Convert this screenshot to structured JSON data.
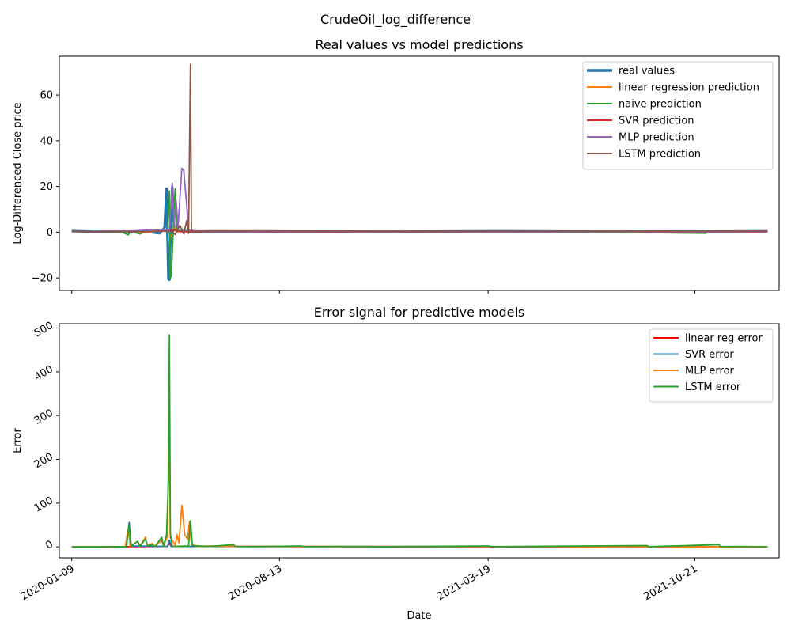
{
  "suptitle": "CrudeOil_log_difference",
  "chart_data": [
    {
      "type": "line",
      "title": "Real values vs model predictions",
      "xlabel": "",
      "ylabel": "Log-Differenced Close price",
      "x_range": [
        "2019-12-27",
        "2022-01-17"
      ],
      "ylim": [
        -25.5,
        77
      ],
      "yticks": [
        -20,
        0,
        20,
        40,
        60
      ],
      "xticks": [
        "2020-01-09",
        "2020-08-13",
        "2021-03-19",
        "2021-10-21"
      ],
      "grid": false,
      "legend_position": "upper right",
      "series": [
        {
          "name": "real values",
          "color": "#1f77b4",
          "line_width": "thick",
          "points": [
            [
              "2020-01-09",
              0.5
            ],
            [
              "2020-02-01",
              0.2
            ],
            [
              "2020-03-01",
              0.3
            ],
            [
              "2020-04-01",
              0.0
            ],
            [
              "2020-04-10",
              -0.5
            ],
            [
              "2020-04-15",
              2
            ],
            [
              "2020-04-17",
              19
            ],
            [
              "2020-04-19",
              -20.5
            ],
            [
              "2020-04-20",
              -20.8
            ],
            [
              "2020-04-21",
              -5
            ],
            [
              "2020-04-23",
              19.8
            ],
            [
              "2020-04-25",
              1
            ],
            [
              "2020-05-01",
              0.5
            ],
            [
              "2020-06-01",
              0.2
            ],
            [
              "2020-08-01",
              0.3
            ],
            [
              "2020-12-01",
              0.2
            ],
            [
              "2021-04-01",
              0.4
            ],
            [
              "2021-08-01",
              0.2
            ],
            [
              "2021-12-01",
              0.3
            ],
            [
              "2022-01-05",
              0.4
            ]
          ]
        },
        {
          "name": "linear regression prediction",
          "color": "#ff7f0e",
          "line_width": "normal",
          "points": [
            [
              "2020-01-09",
              0.3
            ],
            [
              "2020-03-01",
              0.2
            ],
            [
              "2020-04-01",
              0.1
            ],
            [
              "2020-04-18",
              1
            ],
            [
              "2020-04-22",
              -2
            ],
            [
              "2020-04-25",
              2
            ],
            [
              "2020-05-01",
              0.3
            ],
            [
              "2021-01-01",
              0.2
            ],
            [
              "2022-01-05",
              0.3
            ]
          ]
        },
        {
          "name": "naive prediction",
          "color": "#2ca02c",
          "line_width": "normal",
          "points": [
            [
              "2020-01-09",
              0.3
            ],
            [
              "2020-02-01",
              0.2
            ],
            [
              "2020-03-01",
              0.1
            ],
            [
              "2020-03-08",
              -1.2
            ],
            [
              "2020-03-10",
              0.5
            ],
            [
              "2020-03-20",
              -0.8
            ],
            [
              "2020-04-01",
              1.2
            ],
            [
              "2020-04-18",
              0.8
            ],
            [
              "2020-04-20",
              18
            ],
            [
              "2020-04-21",
              -20
            ],
            [
              "2020-04-22",
              -19
            ],
            [
              "2020-04-24",
              0.5
            ],
            [
              "2020-04-26",
              19
            ],
            [
              "2020-04-28",
              0.3
            ],
            [
              "2020-06-01",
              0.2
            ],
            [
              "2020-10-01",
              0.3
            ],
            [
              "2021-06-01",
              0.2
            ],
            [
              "2021-11-01",
              -0.5
            ],
            [
              "2021-11-05",
              0.3
            ],
            [
              "2022-01-05",
              0.2
            ]
          ]
        },
        {
          "name": "SVR prediction",
          "color": "#d62728",
          "line_width": "normal",
          "points": [
            [
              "2020-01-09",
              0.2
            ],
            [
              "2020-04-01",
              0.3
            ],
            [
              "2020-04-22",
              1
            ],
            [
              "2020-05-01",
              0.2
            ],
            [
              "2020-10-01",
              0.1
            ],
            [
              "2021-06-01",
              0.2
            ],
            [
              "2022-01-05",
              0.1
            ]
          ]
        },
        {
          "name": "MLP prediction",
          "color": "#9467bd",
          "line_width": "normal",
          "points": [
            [
              "2020-01-09",
              0.2
            ],
            [
              "2020-03-15",
              0.6
            ],
            [
              "2020-04-01",
              1
            ],
            [
              "2020-04-20",
              1
            ],
            [
              "2020-04-23",
              21.5
            ],
            [
              "2020-04-25",
              3
            ],
            [
              "2020-04-27",
              14
            ],
            [
              "2020-04-29",
              2
            ],
            [
              "2020-05-01",
              15
            ],
            [
              "2020-05-03",
              28
            ],
            [
              "2020-05-05",
              27
            ],
            [
              "2020-05-08",
              12
            ],
            [
              "2020-05-10",
              1
            ],
            [
              "2020-05-15",
              0.5
            ],
            [
              "2020-06-01",
              0.3
            ],
            [
              "2021-06-01",
              0.2
            ],
            [
              "2022-01-05",
              0.2
            ]
          ]
        },
        {
          "name": "LSTM prediction",
          "color": "#8c564b",
          "line_width": "normal",
          "points": [
            [
              "2020-01-09",
              0.3
            ],
            [
              "2020-04-01",
              0.3
            ],
            [
              "2020-04-22",
              0.5
            ],
            [
              "2020-04-26",
              -1
            ],
            [
              "2020-05-01",
              3
            ],
            [
              "2020-05-05",
              -0.8
            ],
            [
              "2020-05-08",
              5
            ],
            [
              "2020-05-10",
              -0.5
            ],
            [
              "2020-05-12",
              73.5
            ],
            [
              "2020-05-13",
              1
            ],
            [
              "2020-05-16",
              0.4
            ],
            [
              "2020-06-01",
              0.6
            ],
            [
              "2021-01-01",
              0.4
            ],
            [
              "2022-01-05",
              0.5
            ]
          ]
        }
      ]
    },
    {
      "type": "line",
      "title": "Error signal for predictive models",
      "xlabel": "Date",
      "ylabel": "Error",
      "x_range": [
        "2019-12-27",
        "2022-01-17"
      ],
      "ylim": [
        -25,
        510
      ],
      "yticks": [
        0,
        100,
        200,
        300,
        400,
        500
      ],
      "xticks": [
        "2020-01-09",
        "2020-08-13",
        "2021-03-19",
        "2021-10-21"
      ],
      "grid": false,
      "legend_position": "upper right",
      "series": [
        {
          "name": "linear reg error",
          "color": "#ff0000",
          "points": [
            [
              "2020-01-09",
              0
            ],
            [
              "2020-04-18",
              1
            ],
            [
              "2020-04-20",
              8
            ],
            [
              "2020-04-22",
              1
            ],
            [
              "2022-01-05",
              0
            ]
          ]
        },
        {
          "name": "SVR error",
          "color": "#1f77b4",
          "points": [
            [
              "2020-01-09",
              0
            ],
            [
              "2020-03-06",
              0
            ],
            [
              "2020-03-09",
              56
            ],
            [
              "2020-03-11",
              2
            ],
            [
              "2020-04-18",
              1
            ],
            [
              "2020-04-20",
              15
            ],
            [
              "2020-04-22",
              1
            ],
            [
              "2022-01-05",
              0
            ]
          ]
        },
        {
          "name": "MLP error",
          "color": "#ff7f0e",
          "points": [
            [
              "2020-01-09",
              0
            ],
            [
              "2020-03-05",
              0
            ],
            [
              "2020-03-08",
              45
            ],
            [
              "2020-03-10",
              2
            ],
            [
              "2020-03-18",
              12
            ],
            [
              "2020-03-20",
              1
            ],
            [
              "2020-03-26",
              22
            ],
            [
              "2020-03-28",
              2
            ],
            [
              "2020-04-02",
              8
            ],
            [
              "2020-04-05",
              1
            ],
            [
              "2020-04-12",
              15
            ],
            [
              "2020-04-14",
              1
            ],
            [
              "2020-04-18",
              25
            ],
            [
              "2020-04-19",
              200
            ],
            [
              "2020-04-20",
              300
            ],
            [
              "2020-04-21",
              20
            ],
            [
              "2020-04-24",
              12
            ],
            [
              "2020-04-26",
              3
            ],
            [
              "2020-04-28",
              28
            ],
            [
              "2020-04-30",
              8
            ],
            [
              "2020-05-03",
              95
            ],
            [
              "2020-05-06",
              28
            ],
            [
              "2020-05-09",
              17
            ],
            [
              "2020-05-11",
              58
            ],
            [
              "2020-05-13",
              5
            ],
            [
              "2020-05-20",
              1
            ],
            [
              "2020-06-01",
              2
            ],
            [
              "2020-07-01",
              1
            ],
            [
              "2022-01-05",
              0
            ]
          ]
        },
        {
          "name": "LSTM error",
          "color": "#2ca02c",
          "points": [
            [
              "2020-01-09",
              0
            ],
            [
              "2020-02-01",
              0
            ],
            [
              "2020-03-01",
              0.5
            ],
            [
              "2020-03-06",
              0
            ],
            [
              "2020-03-09",
              50
            ],
            [
              "2020-03-11",
              2
            ],
            [
              "2020-03-18",
              13
            ],
            [
              "2020-03-20",
              1
            ],
            [
              "2020-03-26",
              18
            ],
            [
              "2020-03-28",
              2
            ],
            [
              "2020-04-02",
              5
            ],
            [
              "2020-04-05",
              1
            ],
            [
              "2020-04-12",
              22
            ],
            [
              "2020-04-14",
              2
            ],
            [
              "2020-04-17",
              28
            ],
            [
              "2020-04-19",
              150
            ],
            [
              "2020-04-20",
              484
            ],
            [
              "2020-04-21",
              30
            ],
            [
              "2020-04-23",
              1
            ],
            [
              "2020-05-10",
              2
            ],
            [
              "2020-05-12",
              60
            ],
            [
              "2020-05-14",
              3
            ],
            [
              "2020-06-01",
              1
            ],
            [
              "2020-06-26",
              5
            ],
            [
              "2020-06-28",
              1
            ],
            [
              "2020-07-15",
              0.5
            ],
            [
              "2020-09-05",
              2
            ],
            [
              "2020-09-07",
              0.5
            ],
            [
              "2020-10-15",
              1
            ],
            [
              "2020-12-01",
              0.5
            ],
            [
              "2021-03-20",
              2
            ],
            [
              "2021-03-22",
              0.5
            ],
            [
              "2021-09-01",
              3
            ],
            [
              "2021-09-03",
              0.5
            ],
            [
              "2021-11-15",
              5
            ],
            [
              "2021-11-17",
              1
            ],
            [
              "2022-01-05",
              0.5
            ]
          ]
        }
      ]
    }
  ]
}
